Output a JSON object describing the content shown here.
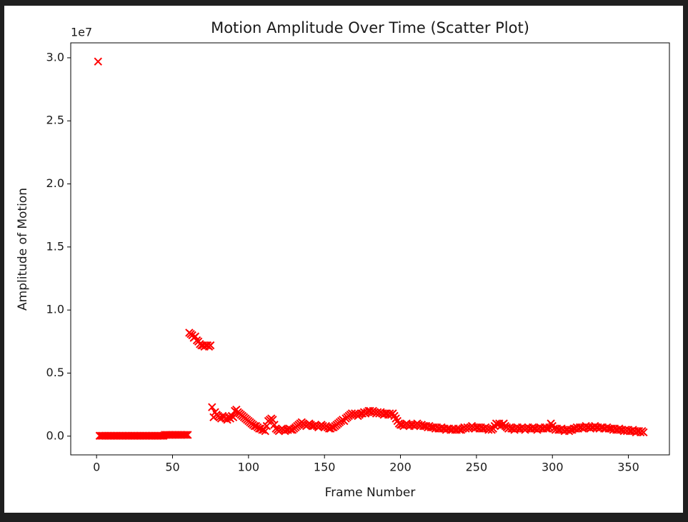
{
  "chart_data": {
    "type": "scatter",
    "title": "Motion Amplitude Over Time (Scatter Plot)",
    "x_label": "Frame Number",
    "y_label": "Amplitude of Motion",
    "y_offset_label": "1e7",
    "marker": "x",
    "color": "#ff0000",
    "xlim": [
      -17,
      377
    ],
    "ylim": [
      -1485000,
      31185000
    ],
    "xticks": [
      0,
      50,
      100,
      150,
      200,
      250,
      300,
      350
    ],
    "yticks": [
      {
        "value": 0,
        "label": "0.0"
      },
      {
        "value": 5000000,
        "label": "0.5"
      },
      {
        "value": 10000000,
        "label": "1.0"
      },
      {
        "value": 15000000,
        "label": "1.5"
      },
      {
        "value": 20000000,
        "label": "2.0"
      },
      {
        "value": 25000000,
        "label": "2.5"
      },
      {
        "value": 30000000,
        "label": "3.0"
      }
    ],
    "grid": false,
    "x": [
      1,
      2,
      3,
      4,
      5,
      6,
      7,
      8,
      9,
      10,
      11,
      12,
      13,
      14,
      15,
      16,
      17,
      18,
      19,
      20,
      21,
      22,
      23,
      24,
      25,
      26,
      27,
      28,
      29,
      30,
      31,
      32,
      33,
      34,
      35,
      36,
      37,
      38,
      39,
      40,
      41,
      42,
      43,
      44,
      45,
      46,
      47,
      48,
      49,
      50,
      51,
      52,
      53,
      54,
      55,
      56,
      57,
      58,
      59,
      60,
      61,
      62,
      63,
      64,
      65,
      66,
      67,
      68,
      69,
      70,
      71,
      72,
      73,
      74,
      75,
      76,
      77,
      78,
      79,
      80,
      81,
      82,
      83,
      84,
      85,
      86,
      87,
      88,
      89,
      90,
      91,
      92,
      93,
      94,
      95,
      96,
      97,
      98,
      99,
      100,
      101,
      102,
      103,
      104,
      105,
      106,
      107,
      108,
      109,
      110,
      111,
      112,
      113,
      114,
      115,
      116,
      117,
      118,
      119,
      120,
      121,
      122,
      123,
      124,
      125,
      126,
      127,
      128,
      129,
      130,
      131,
      132,
      133,
      134,
      135,
      136,
      137,
      138,
      139,
      140,
      141,
      142,
      143,
      144,
      145,
      146,
      147,
      148,
      149,
      150,
      151,
      152,
      153,
      154,
      155,
      156,
      157,
      158,
      159,
      160,
      161,
      162,
      163,
      164,
      165,
      166,
      167,
      168,
      169,
      170,
      171,
      172,
      173,
      174,
      175,
      176,
      177,
      178,
      179,
      180,
      181,
      182,
      183,
      184,
      185,
      186,
      187,
      188,
      189,
      190,
      191,
      192,
      193,
      194,
      195,
      196,
      197,
      198,
      199,
      200,
      201,
      202,
      203,
      204,
      205,
      206,
      207,
      208,
      209,
      210,
      211,
      212,
      213,
      214,
      215,
      216,
      217,
      218,
      219,
      220,
      221,
      222,
      223,
      224,
      225,
      226,
      227,
      228,
      229,
      230,
      231,
      232,
      233,
      234,
      235,
      236,
      237,
      238,
      239,
      240,
      241,
      242,
      243,
      244,
      245,
      246,
      247,
      248,
      249,
      250,
      251,
      252,
      253,
      254,
      255,
      256,
      257,
      258,
      259,
      260,
      261,
      262,
      263,
      264,
      265,
      266,
      267,
      268,
      269,
      270,
      271,
      272,
      273,
      274,
      275,
      276,
      277,
      278,
      279,
      280,
      281,
      282,
      283,
      284,
      285,
      286,
      287,
      288,
      289,
      290,
      291,
      292,
      293,
      294,
      295,
      296,
      297,
      298,
      299,
      300,
      301,
      302,
      303,
      304,
      305,
      306,
      307,
      308,
      309,
      310,
      311,
      312,
      313,
      314,
      315,
      316,
      317,
      318,
      319,
      320,
      321,
      322,
      323,
      324,
      325,
      326,
      327,
      328,
      329,
      330,
      331,
      332,
      333,
      334,
      335,
      336,
      337,
      338,
      339,
      340,
      341,
      342,
      343,
      344,
      345,
      346,
      347,
      348,
      349,
      350,
      351,
      352,
      353,
      354,
      355,
      356,
      357,
      358,
      359,
      360
    ],
    "values": [
      29700000.0,
      30000.0,
      30000.0,
      30000.0,
      30000.0,
      30000.0,
      30000.0,
      30000.0,
      30000.0,
      30000.0,
      30000.0,
      30000.0,
      30000.0,
      30000.0,
      30000.0,
      30000.0,
      30000.0,
      30000.0,
      30000.0,
      30000.0,
      30000.0,
      30000.0,
      30000.0,
      30000.0,
      30000.0,
      30000.0,
      30000.0,
      30000.0,
      30000.0,
      30000.0,
      30000.0,
      30000.0,
      30000.0,
      30000.0,
      30000.0,
      30000.0,
      30000.0,
      30000.0,
      30000.0,
      30000.0,
      30000.0,
      30000.0,
      30000.0,
      30000.0,
      100000.0,
      100000.0,
      100000.0,
      100000.0,
      100000.0,
      100000.0,
      100000.0,
      100000.0,
      100000.0,
      100000.0,
      100000.0,
      100000.0,
      100000.0,
      100000.0,
      100000.0,
      100000.0,
      8200000.0,
      8100000.0,
      8000000.0,
      7800000.0,
      7900000.0,
      7600000.0,
      7500000.0,
      7300000.0,
      7200000.0,
      7200000.0,
      7100000.0,
      7200000.0,
      7200000.0,
      7100000.0,
      7200000.0,
      2300000.0,
      1500000.0,
      1900000.0,
      1700000.0,
      1600000.0,
      1500000.0,
      1400000.0,
      1600000.0,
      1500000.0,
      1400000.0,
      1300000.0,
      1500000.0,
      1400000.0,
      1600000.0,
      1500000.0,
      2000000.0,
      2100000.0,
      1900000.0,
      1800000.0,
      1700000.0,
      1600000.0,
      1500000.0,
      1400000.0,
      1300000.0,
      1200000.0,
      1100000.0,
      1000000.0,
      900000.0,
      800000.0,
      800000.0,
      700000.0,
      600000.0,
      600000.0,
      500000.0,
      500000.0,
      400000.0,
      800000.0,
      1200000.0,
      1300000.0,
      1400000.0,
      1300000.0,
      900000.0,
      600000.0,
      500000.0,
      400000.0,
      500000.0,
      600000.0,
      500000.0,
      400000.0,
      500000.0,
      500000.0,
      600000.0,
      500000.0,
      500000.0,
      600000.0,
      700000.0,
      800000.0,
      900000.0,
      1000000.0,
      1100000.0,
      1000000.0,
      900000.0,
      800000.0,
      900000.0,
      1000000.0,
      900000.0,
      800000.0,
      800000.0,
      900000.0,
      800000.0,
      700000.0,
      800000.0,
      900000.0,
      800000.0,
      700000.0,
      800000.0,
      700000.0,
      600000.0,
      600000.0,
      700000.0,
      700000.0,
      800000.0,
      900000.0,
      1000000.0,
      1100000.0,
      1200000.0,
      1300000.0,
      1200000.0,
      1400000.0,
      1500000.0,
      1600000.0,
      1700000.0,
      1800000.0,
      1700000.0,
      1800000.0,
      1700000.0,
      1600000.0,
      1700000.0,
      1800000.0,
      1800000.0,
      1900000.0,
      1800000.0,
      1900000.0,
      2000000.0,
      2000000.0,
      1900000.0,
      2000000.0,
      1900000.0,
      1800000.0,
      1900000.0,
      1800000.0,
      1900000.0,
      1800000.0,
      1700000.0,
      1800000.0,
      1800000.0,
      1700000.0,
      1800000.0,
      1700000.0,
      1800000.0,
      1600000.0,
      1400000.0,
      1200000.0,
      1000000.0,
      900000.0,
      900000.0,
      800000.0,
      900000.0,
      1000000.0,
      900000.0,
      800000.0,
      900000.0,
      900000.0,
      800000.0,
      900000.0,
      1000000.0,
      900000.0,
      800000.0,
      900000.0,
      800000.0,
      800000.0,
      800000.0,
      700000.0,
      800000.0,
      700000.0,
      700000.0,
      700000.0,
      600000.0,
      700000.0,
      600000.0,
      600000.0,
      700000.0,
      600000.0,
      600000.0,
      500000.0,
      600000.0,
      600000.0,
      500000.0,
      500000.0,
      600000.0,
      500000.0,
      500000.0,
      600000.0,
      500000.0,
      500000.0,
      600000.0,
      700000.0,
      600000.0,
      700000.0,
      600000.0,
      700000.0,
      800000.0,
      700000.0,
      600000.0,
      700000.0,
      700000.0,
      600000.0,
      700000.0,
      600000.0,
      600000.0,
      700000.0,
      600000.0,
      500000.0,
      600000.0,
      500000.0,
      600000.0,
      800000.0,
      1000000.0,
      900000.0,
      1000000.0,
      800000.0,
      900000.0,
      1000000.0,
      800000.0,
      700000.0,
      600000.0,
      700000.0,
      600000.0,
      600000.0,
      500000.0,
      600000.0,
      700000.0,
      600000.0,
      600000.0,
      700000.0,
      600000.0,
      500000.0,
      600000.0,
      700000.0,
      600000.0,
      600000.0,
      700000.0,
      600000.0,
      600000.0,
      500000.0,
      600000.0,
      700000.0,
      600000.0,
      600000.0,
      700000.0,
      600000.0,
      600000.0,
      700000.0,
      1000000.0,
      800000.0,
      600000.0,
      500000.0,
      600000.0,
      500000.0,
      500000.0,
      600000.0,
      500000.0,
      400000.0,
      500000.0,
      500000.0,
      400000.0,
      500000.0,
      500000.0,
      600000.0,
      600000.0,
      700000.0,
      600000.0,
      700000.0,
      700000.0,
      600000.0,
      700000.0,
      800000.0,
      700000.0,
      700000.0,
      600000.0,
      700000.0,
      700000.0,
      800000.0,
      700000.0,
      700000.0,
      600000.0,
      700000.0,
      700000.0,
      600000.0,
      600000.0,
      700000.0,
      600000.0,
      600000.0,
      600000.0,
      500000.0,
      600000.0,
      500000.0,
      500000.0,
      600000.0,
      500000.0,
      500000.0,
      400000.0,
      500000.0,
      400000.0,
      500000.0,
      400000.0,
      400000.0,
      500000.0,
      400000.0,
      300000.0,
      400000.0,
      400000.0,
      300000.0,
      400000.0,
      300000.0
    ]
  }
}
